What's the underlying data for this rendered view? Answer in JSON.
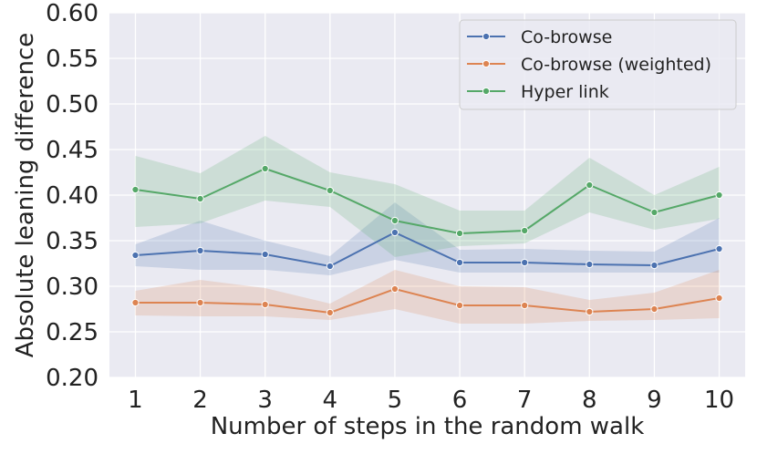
{
  "chart_data": {
    "type": "line",
    "xlabel": "Number of steps in the random walk",
    "ylabel": "Absolute leaning difference",
    "x": [
      1,
      2,
      3,
      4,
      5,
      6,
      7,
      8,
      9,
      10
    ],
    "xticks": [
      "1",
      "2",
      "3",
      "4",
      "5",
      "6",
      "7",
      "8",
      "9",
      "10"
    ],
    "ylim": [
      0.2,
      0.6
    ],
    "yticks": [
      "0.20",
      "0.25",
      "0.30",
      "0.35",
      "0.40",
      "0.45",
      "0.50",
      "0.55",
      "0.60"
    ],
    "grid": true,
    "legend_position": "top-right",
    "series": [
      {
        "name": "Co-browse",
        "color": "#4c72b0",
        "values": [
          0.334,
          0.339,
          0.335,
          0.322,
          0.359,
          0.326,
          0.326,
          0.324,
          0.323,
          0.341
        ],
        "ci_lower": [
          0.322,
          0.318,
          0.318,
          0.312,
          0.329,
          0.315,
          0.315,
          0.315,
          0.315,
          0.315
        ],
        "ci_upper": [
          0.346,
          0.372,
          0.35,
          0.333,
          0.392,
          0.34,
          0.341,
          0.339,
          0.338,
          0.375
        ]
      },
      {
        "name": "Co-browse (weighted)",
        "color": "#dd8452",
        "values": [
          0.282,
          0.282,
          0.28,
          0.271,
          0.297,
          0.279,
          0.279,
          0.272,
          0.275,
          0.287
        ],
        "ci_lower": [
          0.268,
          0.267,
          0.267,
          0.263,
          0.275,
          0.259,
          0.259,
          0.262,
          0.263,
          0.265
        ],
        "ci_upper": [
          0.295,
          0.307,
          0.298,
          0.281,
          0.318,
          0.3,
          0.299,
          0.285,
          0.293,
          0.318
        ]
      },
      {
        "name": "Hyper link",
        "color": "#55a868",
        "values": [
          0.406,
          0.396,
          0.429,
          0.405,
          0.372,
          0.358,
          0.361,
          0.411,
          0.381,
          0.4
        ],
        "ci_lower": [
          0.365,
          0.369,
          0.394,
          0.387,
          0.332,
          0.344,
          0.347,
          0.381,
          0.362,
          0.374
        ],
        "ci_upper": [
          0.443,
          0.424,
          0.465,
          0.425,
          0.412,
          0.383,
          0.383,
          0.441,
          0.4,
          0.431
        ]
      }
    ]
  }
}
